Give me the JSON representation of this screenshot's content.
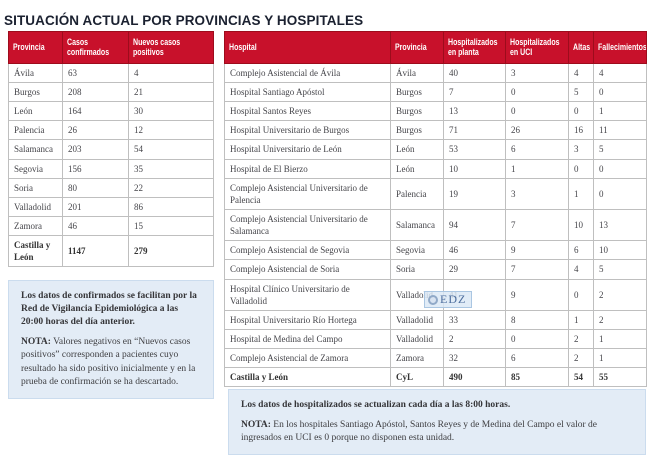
{
  "page": {
    "title": "SITUACIÓN ACTUAL POR PROVINCIAS Y HOSPITALES"
  },
  "colors": {
    "header_red": "#c8112b",
    "header_separator_red": "#9d0c1c",
    "table_border_grey": "#bfbfbf",
    "note_box_blue": "#e3ecf6",
    "note_box_border": "#cbdcee",
    "title_navy": "#1b2130",
    "watermark_blue": "#4d6e9e"
  },
  "provinces_table": {
    "headers": [
      "Provincia",
      "Casos confirmados",
      "Nuevos casos positivos"
    ],
    "rows": [
      [
        "Ávila",
        "63",
        "4"
      ],
      [
        "Burgos",
        "208",
        "21"
      ],
      [
        "León",
        "164",
        "30"
      ],
      [
        "Palencia",
        "26",
        "12"
      ],
      [
        "Salamanca",
        "203",
        "54"
      ],
      [
        "Segovia",
        "156",
        "35"
      ],
      [
        "Soria",
        "80",
        "22"
      ],
      [
        "Valladolid",
        "201",
        "86"
      ],
      [
        "Zamora",
        "46",
        "15"
      ]
    ],
    "total": [
      "Castilla y León",
      "1147",
      "279"
    ]
  },
  "provinces_note": {
    "intro": "Los datos de confirmados se facilitan por la Red de Vigilancia Epidemiológica a las 20:00 horas del día anterior.",
    "nota_label": "NOTA:",
    "nota_text": "Valores negativos en “Nuevos casos positivos” corresponden a pacientes cuyo resultado ha sido positivo inicialmente y en la prueba de confirmación se ha descartado."
  },
  "hospitals_table": {
    "headers": [
      "Hospital",
      "Provincia",
      "Hospitalizados en planta",
      "Hospitalizados en UCI",
      "Altas",
      "Fallecimientos"
    ],
    "rows": [
      [
        "Complejo Asistencial de Ávila",
        "Ávila",
        "40",
        "3",
        "4",
        "4"
      ],
      [
        "Hospital Santiago Apóstol",
        "Burgos",
        "7",
        "0",
        "5",
        "0"
      ],
      [
        "Hospital Santos Reyes",
        "Burgos",
        "13",
        "0",
        "0",
        "1"
      ],
      [
        "Hospital Universitario de Burgos",
        "Burgos",
        "71",
        "26",
        "16",
        "11"
      ],
      [
        "Hospital Universitario de León",
        "León",
        "53",
        "6",
        "3",
        "5"
      ],
      [
        "Hospital de El Bierzo",
        "León",
        "10",
        "1",
        "0",
        "0"
      ],
      [
        "Complejo Asistencial Universitario de Palencia",
        "Palencia",
        "19",
        "3",
        "1",
        "0"
      ],
      [
        "Complejo Asistencial Universitario de Salamanca",
        "Salamanca",
        "94",
        "7",
        "10",
        "13"
      ],
      [
        "Complejo Asistencial de Segovia",
        "Segovia",
        "46",
        "9",
        "6",
        "10"
      ],
      [
        "Complejo Asistencial de Soria",
        "Soria",
        "29",
        "7",
        "4",
        "5"
      ],
      [
        "Hospital Clínico Universitario de Valladolid",
        "Valladolid",
        "41",
        "9",
        "0",
        "2"
      ],
      [
        "Hospital Universitario Río Hortega",
        "Valladolid",
        "33",
        "8",
        "1",
        "2"
      ],
      [
        "Hospital de Medina del Campo",
        "Valladolid",
        "2",
        "0",
        "2",
        "1"
      ],
      [
        "Complejo Asistencial de Zamora",
        "Zamora",
        "32",
        "6",
        "2",
        "1"
      ]
    ],
    "total": [
      "Castilla y León",
      "CyL",
      "490",
      "85",
      "54",
      "55"
    ]
  },
  "hospitals_note": {
    "intro": "Los datos de hospitalizados se actualizan cada día a las 8:00 horas.",
    "nota_label": "NOTA:",
    "nota_text": "En los hospitales Santiago Apóstol, Santos Reyes y de Medina del Campo el valor de ingresados en UCI es 0 porque no disponen esta unidad."
  },
  "watermark": {
    "text": "EDZ"
  }
}
